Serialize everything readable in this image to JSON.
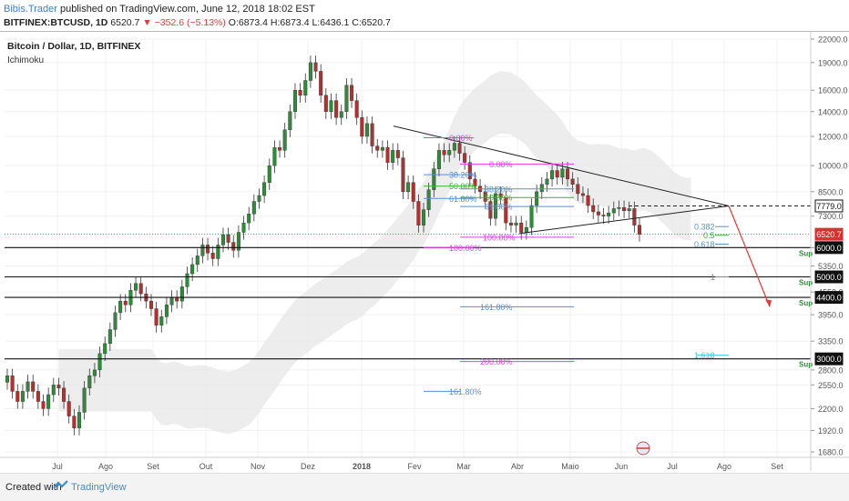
{
  "header": {
    "author": "Bibis.Trader",
    "published_text": "published on TradingView.com, June 12, 2018 18:02 EST",
    "symbol": "BITFINEX:BTCUSD, 1D",
    "last": "6520.7",
    "change": "−352.6 (−5.13%)",
    "ohlc": "O:6873.4 H:6873.4 L:6436.1 C:6520.7"
  },
  "footer": {
    "created_with": "Created with",
    "brand": "TradingView"
  },
  "chart_data": {
    "type": "candlestick",
    "title": "Bitcoin / Dollar, 1D, BITFINEX",
    "indicator": "Ichimoku",
    "y_axis": {
      "scale": "log",
      "ticks": [
        "22000.0",
        "19000.0",
        "16000.0",
        "14000.0",
        "12000.0",
        "10000.0",
        "8500.0",
        "7300.0",
        "6000.0",
        "5350.0",
        "4550.0",
        "3950.0",
        "3350.0",
        "2800.0",
        "2550.0",
        "2200.0",
        "1920.0",
        "1680.0"
      ]
    },
    "x_axis": {
      "ticks": [
        "Jul",
        "Ago",
        "Set",
        "Out",
        "Nov",
        "Dez",
        "2018",
        "Fev",
        "Mar",
        "Abr",
        "Maio",
        "Jun",
        "Jul",
        "Ago",
        "Set"
      ]
    },
    "price_labels": [
      {
        "value": "7779.0",
        "style": "outline"
      },
      {
        "value": "6520.7",
        "style": "red"
      },
      {
        "value": "6000.0",
        "style": "black"
      },
      {
        "value": "5000.0",
        "style": "black"
      },
      {
        "value": "4400.0",
        "style": "black"
      },
      {
        "value": "3000.0",
        "style": "black"
      }
    ],
    "support_lines": [
      {
        "price": 6000,
        "label": "Sup"
      },
      {
        "price": 5000,
        "label": "Sup"
      },
      {
        "price": 4400,
        "label": "Sup"
      },
      {
        "price": 3000,
        "label": "Sup"
      }
    ],
    "fib_labels": [
      {
        "text": "0.00%",
        "color": "#e040e0"
      },
      {
        "text": "38.20%",
        "color": "#5b8fd0"
      },
      {
        "text": "50.00%",
        "color": "#3ab03a"
      },
      {
        "text": "61.80%",
        "color": "#5b8fd0"
      },
      {
        "text": "100.00%",
        "color": "#e040e0"
      },
      {
        "text": "0.00%",
        "color": "#e040e0"
      },
      {
        "text": "38.20%",
        "color": "#5b8fd0"
      },
      {
        "text": "50.00%",
        "color": "#3ab03a"
      },
      {
        "text": "61.80%",
        "color": "#5b8fd0"
      },
      {
        "text": "100.00%",
        "color": "#e040e0"
      },
      {
        "text": "161.80%",
        "color": "#5b8fd0"
      },
      {
        "text": "200.00%",
        "color": "#e040e0"
      },
      {
        "text": "161.80%",
        "color": "#5b8fd0"
      },
      {
        "text": "0.382",
        "color": "#5b8fd0"
      },
      {
        "text": "0.5",
        "color": "#3ab03a"
      },
      {
        "text": "0.618",
        "color": "#5b8fd0"
      },
      {
        "text": "1",
        "color": "#888888"
      },
      {
        "text": "1.618",
        "color": "#3fc8d8"
      }
    ],
    "candle_closes": [
      2700,
      2450,
      2300,
      2450,
      2600,
      2450,
      2300,
      2200,
      2400,
      2550,
      2500,
      2300,
      2100,
      1950,
      2150,
      2500,
      2700,
      2800,
      3100,
      3300,
      3600,
      4000,
      4300,
      4200,
      4600,
      4800,
      4500,
      4300,
      4100,
      3700,
      3900,
      4200,
      4400,
      4300,
      4700,
      5100,
      5400,
      5700,
      6100,
      5800,
      5600,
      6100,
      6500,
      6200,
      5900,
      6600,
      7000,
      7400,
      8000,
      8300,
      9000,
      10000,
      11200,
      11000,
      12500,
      14000,
      16000,
      15500,
      17000,
      19000,
      18000,
      15500,
      14000,
      15000,
      13500,
      14000,
      16500,
      15000,
      13500,
      12000,
      13000,
      11300,
      11000,
      11200,
      10200,
      11000,
      10500,
      8500,
      9000,
      8000,
      6900,
      7600,
      8600,
      9800,
      11000,
      10700,
      11000,
      11500,
      10800,
      10200,
      9200,
      8800,
      8500,
      8000,
      7200,
      8400,
      8200,
      7000,
      6900,
      7000,
      6600,
      6800,
      7800,
      8500,
      8900,
      9200,
      9700,
      9300,
      9800,
      9200,
      8900,
      8400,
      8300,
      7800,
      7500,
      7350,
      7300,
      7450,
      7650,
      7700,
      7550,
      7650,
      6900,
      6520
    ]
  }
}
